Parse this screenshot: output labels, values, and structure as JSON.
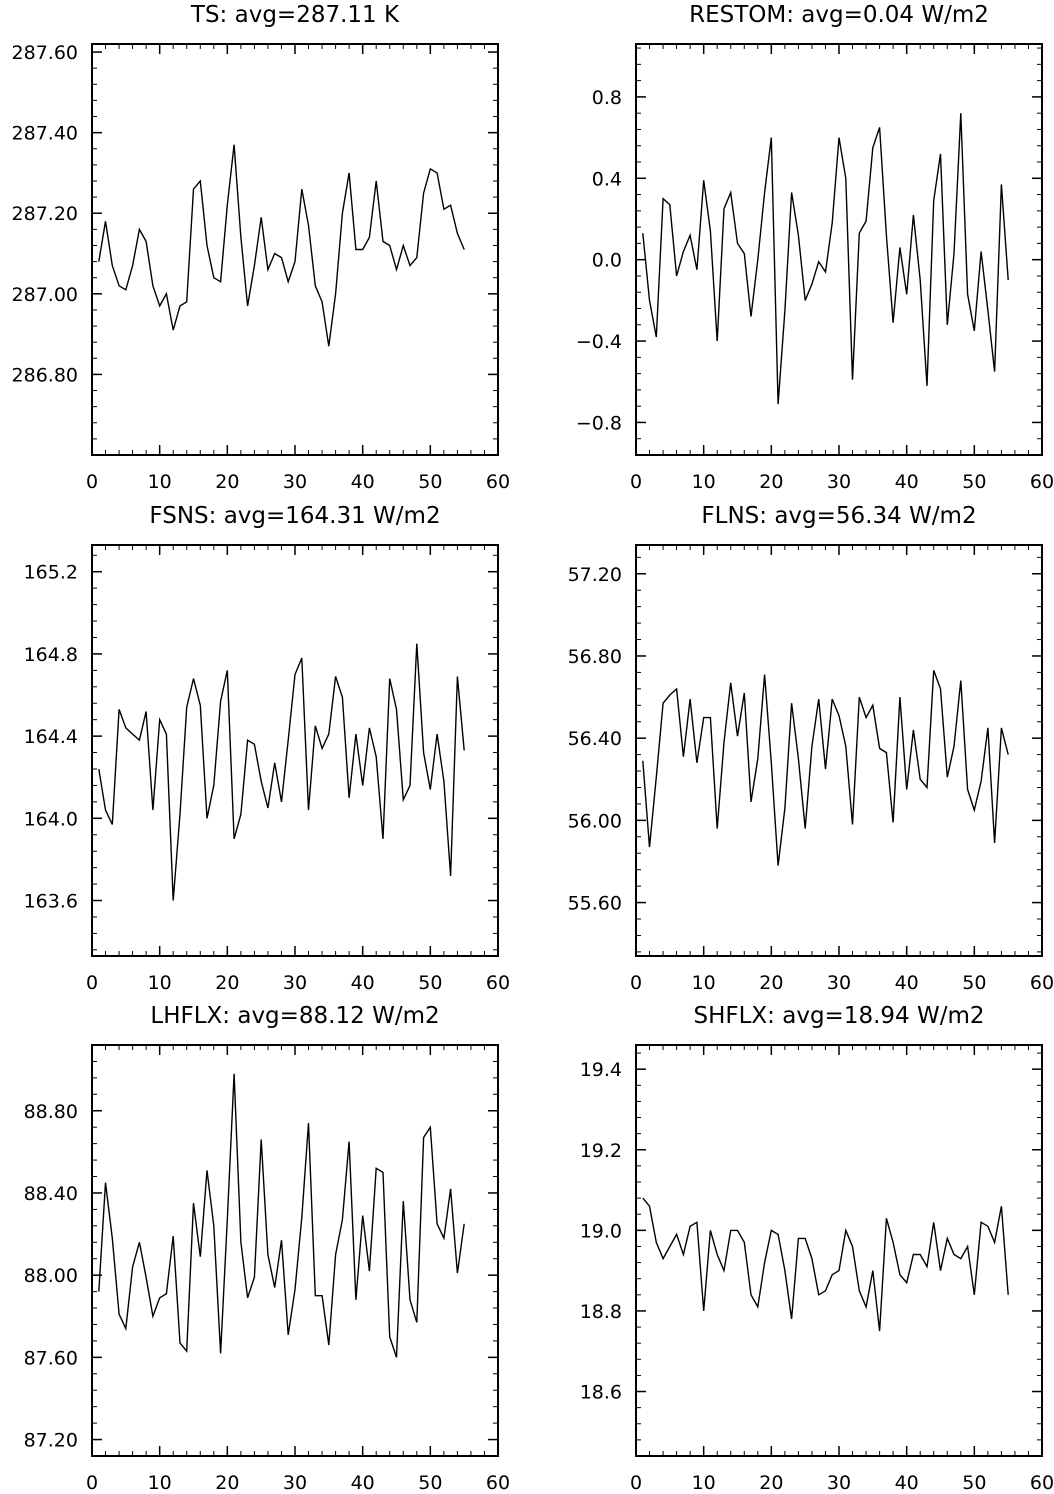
{
  "chart_data": [
    {
      "type": "line",
      "title": "TS: avg=287.11 K",
      "xlabel": "",
      "ylabel": "",
      "xlim": [
        0,
        60
      ],
      "ylim": [
        286.6,
        287.62
      ],
      "x_ticks": [
        0,
        10,
        20,
        30,
        40,
        50,
        60
      ],
      "x_tick_labels": [
        "0",
        "10",
        "20",
        "30",
        "40",
        "50",
        "60"
      ],
      "y_ticks": [
        286.8,
        287.0,
        287.2,
        287.4,
        287.6
      ],
      "y_tick_labels": [
        "286.80",
        "287.00",
        "287.20",
        "287.40",
        "287.60"
      ],
      "series": [
        {
          "x": [
            1,
            2,
            3,
            4,
            5,
            6,
            7,
            8,
            9,
            10,
            11,
            12,
            13,
            14,
            15,
            16,
            17,
            18,
            19,
            20,
            21,
            22,
            23,
            24,
            25,
            26,
            27,
            28,
            29,
            30,
            31,
            32,
            33,
            34,
            35,
            36,
            37,
            38,
            39,
            40,
            41,
            42,
            43,
            44,
            45,
            46,
            47,
            48,
            49,
            50,
            51,
            52,
            53,
            54,
            55
          ],
          "values": [
            287.08,
            287.18,
            287.07,
            287.02,
            287.01,
            287.07,
            287.16,
            287.13,
            287.02,
            286.97,
            287.0,
            286.91,
            286.97,
            286.98,
            287.26,
            287.28,
            287.12,
            287.04,
            287.03,
            287.22,
            287.37,
            287.14,
            286.97,
            287.07,
            287.19,
            287.06,
            287.1,
            287.09,
            287.03,
            287.08,
            287.26,
            287.17,
            287.02,
            286.98,
            286.87,
            287.0,
            287.2,
            287.3,
            287.11,
            287.11,
            287.14,
            287.28,
            287.13,
            287.12,
            287.06,
            287.12,
            287.07,
            287.09,
            287.25,
            287.31,
            287.3,
            287.21,
            287.22,
            287.15,
            287.11
          ]
        }
      ]
    },
    {
      "type": "line",
      "title": "RESTOM: avg=0.04 W/m2",
      "xlabel": "",
      "ylabel": "",
      "xlim": [
        0,
        60
      ],
      "ylim": [
        -0.96,
        1.06
      ],
      "x_ticks": [
        0,
        10,
        20,
        30,
        40,
        50,
        60
      ],
      "x_tick_labels": [
        "0",
        "10",
        "20",
        "30",
        "40",
        "50",
        "60"
      ],
      "y_ticks": [
        -0.8,
        -0.4,
        0.0,
        0.4,
        0.8
      ],
      "y_tick_labels": [
        "−0.8",
        "−0.4",
        "0.0",
        "0.4",
        "0.8"
      ],
      "series": [
        {
          "x": [
            1,
            2,
            3,
            4,
            5,
            6,
            7,
            8,
            9,
            10,
            11,
            12,
            13,
            14,
            15,
            16,
            17,
            18,
            19,
            20,
            21,
            22,
            23,
            24,
            25,
            26,
            27,
            28,
            29,
            30,
            31,
            32,
            33,
            34,
            35,
            36,
            37,
            38,
            39,
            40,
            41,
            42,
            43,
            44,
            45,
            46,
            47,
            48,
            49,
            50,
            51,
            52,
            53,
            54,
            55
          ],
          "values": [
            0.13,
            -0.2,
            -0.38,
            0.3,
            0.27,
            -0.08,
            0.04,
            0.12,
            -0.05,
            0.39,
            0.14,
            -0.4,
            0.25,
            0.33,
            0.08,
            0.03,
            -0.28,
            0.0,
            0.33,
            0.6,
            -0.71,
            -0.25,
            0.33,
            0.12,
            -0.2,
            -0.12,
            -0.01,
            -0.06,
            0.18,
            0.6,
            0.4,
            -0.59,
            0.13,
            0.19,
            0.55,
            0.65,
            0.12,
            -0.31,
            0.06,
            -0.17,
            0.22,
            -0.1,
            -0.62,
            0.29,
            0.52,
            -0.32,
            0.03,
            0.72,
            -0.17,
            -0.35,
            0.04,
            -0.25,
            -0.55,
            0.37,
            -0.1
          ]
        }
      ]
    },
    {
      "type": "line",
      "title": "FSNS: avg=164.31 W/m2",
      "xlabel": "",
      "ylabel": "",
      "xlim": [
        0,
        60
      ],
      "ylim": [
        163.33,
        165.33
      ],
      "x_ticks": [
        0,
        10,
        20,
        30,
        40,
        50,
        60
      ],
      "x_tick_labels": [
        "0",
        "10",
        "20",
        "30",
        "40",
        "50",
        "60"
      ],
      "y_ticks": [
        163.6,
        164.0,
        164.4,
        164.8,
        165.2
      ],
      "y_tick_labels": [
        "163.6",
        "164.0",
        "164.4",
        "164.8",
        "165.2"
      ],
      "series": [
        {
          "x": [
            1,
            2,
            3,
            4,
            5,
            6,
            7,
            8,
            9,
            10,
            11,
            12,
            13,
            14,
            15,
            16,
            17,
            18,
            19,
            20,
            21,
            22,
            23,
            24,
            25,
            26,
            27,
            28,
            29,
            30,
            31,
            32,
            33,
            34,
            35,
            36,
            37,
            38,
            39,
            40,
            41,
            42,
            43,
            44,
            45,
            46,
            47,
            48,
            49,
            50,
            51,
            52,
            53,
            54,
            55
          ],
          "values": [
            164.24,
            164.04,
            163.97,
            164.53,
            164.44,
            164.41,
            164.38,
            164.52,
            164.04,
            164.48,
            164.41,
            163.6,
            164.02,
            164.54,
            164.68,
            164.55,
            164.0,
            164.16,
            164.57,
            164.72,
            163.9,
            164.02,
            164.38,
            164.36,
            164.18,
            164.05,
            164.27,
            164.08,
            164.38,
            164.7,
            164.78,
            164.04,
            164.45,
            164.34,
            164.41,
            164.69,
            164.59,
            164.1,
            164.41,
            164.16,
            164.44,
            164.3,
            163.9,
            164.68,
            164.53,
            164.09,
            164.16,
            164.85,
            164.32,
            164.14,
            164.41,
            164.18,
            163.72,
            164.69,
            164.33
          ]
        }
      ]
    },
    {
      "type": "line",
      "title": "FLNS: avg=56.34 W/m2",
      "xlabel": "",
      "ylabel": "",
      "xlim": [
        0,
        60
      ],
      "ylim": [
        55.34,
        57.34
      ],
      "x_ticks": [
        0,
        10,
        20,
        30,
        40,
        50,
        60
      ],
      "x_tick_labels": [
        "0",
        "10",
        "20",
        "30",
        "40",
        "50",
        "60"
      ],
      "y_ticks": [
        55.6,
        56.0,
        56.4,
        56.8,
        57.2
      ],
      "y_tick_labels": [
        "55.60",
        "56.00",
        "56.40",
        "56.80",
        "57.20"
      ],
      "series": [
        {
          "x": [
            1,
            2,
            3,
            4,
            5,
            6,
            7,
            8,
            9,
            10,
            11,
            12,
            13,
            14,
            15,
            16,
            17,
            18,
            19,
            20,
            21,
            22,
            23,
            24,
            25,
            26,
            27,
            28,
            29,
            30,
            31,
            32,
            33,
            34,
            35,
            36,
            37,
            38,
            39,
            40,
            41,
            42,
            43,
            44,
            45,
            46,
            47,
            48,
            49,
            50,
            51,
            52,
            53,
            54,
            55
          ],
          "values": [
            56.29,
            55.87,
            56.21,
            56.57,
            56.61,
            56.64,
            56.31,
            56.59,
            56.28,
            56.5,
            56.5,
            55.96,
            56.38,
            56.67,
            56.41,
            56.62,
            56.09,
            56.3,
            56.71,
            56.28,
            55.78,
            56.06,
            56.57,
            56.3,
            55.96,
            56.36,
            56.59,
            56.25,
            56.59,
            56.51,
            56.36,
            55.98,
            56.6,
            56.5,
            56.56,
            56.35,
            56.33,
            55.99,
            56.6,
            56.15,
            56.44,
            56.2,
            56.16,
            56.73,
            56.64,
            56.21,
            56.36,
            56.68,
            56.15,
            56.05,
            56.19,
            56.45,
            55.89,
            56.45,
            56.32
          ]
        }
      ]
    },
    {
      "type": "line",
      "title": "LHFLX: avg=88.12 W/m2",
      "xlabel": "",
      "ylabel": "",
      "xlim": [
        0,
        60
      ],
      "ylim": [
        87.12,
        89.12
      ],
      "x_ticks": [
        0,
        10,
        20,
        30,
        40,
        50,
        60
      ],
      "x_tick_labels": [
        "0",
        "10",
        "20",
        "30",
        "40",
        "50",
        "60"
      ],
      "y_ticks": [
        87.2,
        87.6,
        88.0,
        88.4,
        88.8
      ],
      "y_tick_labels": [
        "87.20",
        "87.60",
        "88.00",
        "88.40",
        "88.80"
      ],
      "series": [
        {
          "x": [
            1,
            2,
            3,
            4,
            5,
            6,
            7,
            8,
            9,
            10,
            11,
            12,
            13,
            14,
            15,
            16,
            17,
            18,
            19,
            20,
            21,
            22,
            23,
            24,
            25,
            26,
            27,
            28,
            29,
            30,
            31,
            32,
            33,
            34,
            35,
            36,
            37,
            38,
            39,
            40,
            41,
            42,
            43,
            44,
            45,
            46,
            47,
            48,
            49,
            50,
            51,
            52,
            53,
            54,
            55
          ],
          "values": [
            87.92,
            88.45,
            88.18,
            87.81,
            87.74,
            88.04,
            88.16,
            87.99,
            87.8,
            87.89,
            87.91,
            88.19,
            87.67,
            87.63,
            88.35,
            88.09,
            88.51,
            88.24,
            87.62,
            88.27,
            88.98,
            88.16,
            87.89,
            87.99,
            88.66,
            88.1,
            87.94,
            88.17,
            87.71,
            87.93,
            88.28,
            88.74,
            87.9,
            87.9,
            87.66,
            88.1,
            88.27,
            88.65,
            87.88,
            88.29,
            88.02,
            88.52,
            88.5,
            87.7,
            87.6,
            88.36,
            87.88,
            87.77,
            88.67,
            88.72,
            88.25,
            88.18,
            88.42,
            88.01,
            88.25
          ]
        }
      ]
    },
    {
      "type": "line",
      "title": "SHFLX: avg=18.94 W/m2",
      "xlabel": "",
      "ylabel": "",
      "xlim": [
        0,
        60
      ],
      "ylim": [
        18.44,
        19.46
      ],
      "x_ticks": [
        0,
        10,
        20,
        30,
        40,
        50,
        60
      ],
      "x_tick_labels": [
        "0",
        "10",
        "20",
        "30",
        "40",
        "50",
        "60"
      ],
      "y_ticks": [
        18.6,
        18.8,
        19.0,
        19.2,
        19.4
      ],
      "y_tick_labels": [
        "18.6",
        "18.8",
        "19.0",
        "19.2",
        "19.4"
      ],
      "series": [
        {
          "x": [
            1,
            2,
            3,
            4,
            5,
            6,
            7,
            8,
            9,
            10,
            11,
            12,
            13,
            14,
            15,
            16,
            17,
            18,
            19,
            20,
            21,
            22,
            23,
            24,
            25,
            26,
            27,
            28,
            29,
            30,
            31,
            32,
            33,
            34,
            35,
            36,
            37,
            38,
            39,
            40,
            41,
            42,
            43,
            44,
            45,
            46,
            47,
            48,
            49,
            50,
            51,
            52,
            53,
            54,
            55
          ],
          "values": [
            19.08,
            19.06,
            18.97,
            18.93,
            18.96,
            18.99,
            18.94,
            19.01,
            19.02,
            18.8,
            19.0,
            18.94,
            18.9,
            19.0,
            19.0,
            18.97,
            18.84,
            18.81,
            18.92,
            19.0,
            18.99,
            18.9,
            18.78,
            18.98,
            18.98,
            18.93,
            18.84,
            18.85,
            18.89,
            18.9,
            19.0,
            18.96,
            18.85,
            18.81,
            18.9,
            18.75,
            19.03,
            18.97,
            18.89,
            18.87,
            18.94,
            18.94,
            18.91,
            19.02,
            18.9,
            18.98,
            18.94,
            18.93,
            18.96,
            18.84,
            19.02,
            19.01,
            18.97,
            19.06,
            18.84
          ]
        }
      ]
    }
  ]
}
